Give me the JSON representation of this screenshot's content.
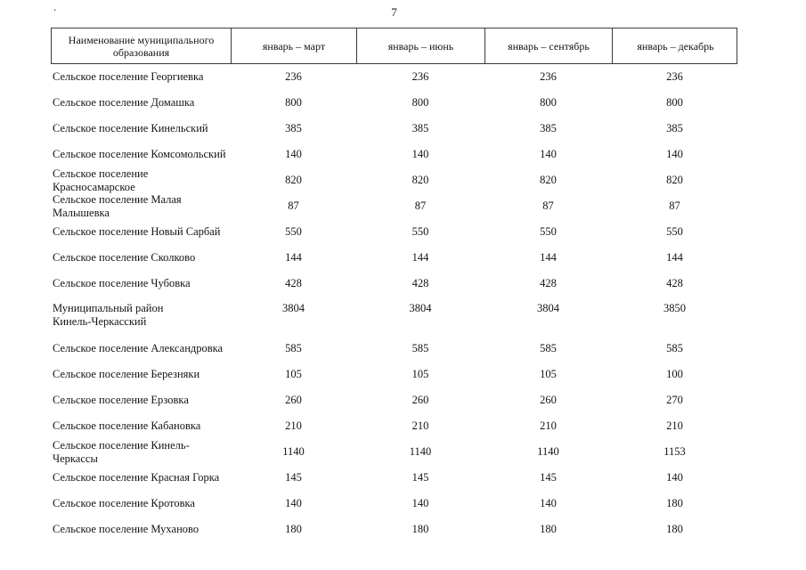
{
  "page": {
    "number": "7",
    "artifact_dot": "."
  },
  "table": {
    "headers": [
      "Наименование муниципального образования",
      "январь – март",
      "январь – июнь",
      "январь – сентябрь",
      "январь – декабрь"
    ],
    "rows": [
      {
        "name": "Сельское поселение Георгиевка",
        "values": [
          "236",
          "236",
          "236",
          "236"
        ]
      },
      {
        "name": "Сельское поселение Домашка",
        "values": [
          "800",
          "800",
          "800",
          "800"
        ]
      },
      {
        "name": "Сельское поселение Кинельский",
        "values": [
          "385",
          "385",
          "385",
          "385"
        ]
      },
      {
        "name": "Сельское поселение Комсомольский",
        "values": [
          "140",
          "140",
          "140",
          "140"
        ]
      },
      {
        "name": "Сельское поселение Красносамарское",
        "values": [
          "820",
          "820",
          "820",
          "820"
        ]
      },
      {
        "name": "Сельское поселение Малая Малышевка",
        "values": [
          "87",
          "87",
          "87",
          "87"
        ]
      },
      {
        "name": "Сельское поселение Новый Сарбай",
        "values": [
          "550",
          "550",
          "550",
          "550"
        ]
      },
      {
        "name": "Сельское поселение Сколково",
        "values": [
          "144",
          "144",
          "144",
          "144"
        ]
      },
      {
        "name": "Сельское поселение Чубовка",
        "values": [
          "428",
          "428",
          "428",
          "428"
        ]
      },
      {
        "name": "Муниципальный район\nКинель-Черкасский",
        "values": [
          "3804",
          "3804",
          "3804",
          "3850"
        ],
        "two_line": true
      },
      {
        "name": "Сельское поселение Александровка",
        "values": [
          "585",
          "585",
          "585",
          "585"
        ]
      },
      {
        "name": "Сельское поселение Березняки",
        "values": [
          "105",
          "105",
          "105",
          "100"
        ]
      },
      {
        "name": "Сельское поселение Ерзовка",
        "values": [
          "260",
          "260",
          "260",
          "270"
        ]
      },
      {
        "name": "Сельское поселение Кабановка",
        "values": [
          "210",
          "210",
          "210",
          "210"
        ]
      },
      {
        "name": "Сельское поселение Кинель-Черкассы",
        "values": [
          "1140",
          "1140",
          "1140",
          "1153"
        ]
      },
      {
        "name": "Сельское поселение Красная Горка",
        "values": [
          "145",
          "145",
          "145",
          "140"
        ]
      },
      {
        "name": "Сельское поселение Кротовка",
        "values": [
          "140",
          "140",
          "140",
          "180"
        ]
      },
      {
        "name": "Сельское поселение Муханово",
        "values": [
          "180",
          "180",
          "180",
          "180"
        ]
      }
    ]
  }
}
